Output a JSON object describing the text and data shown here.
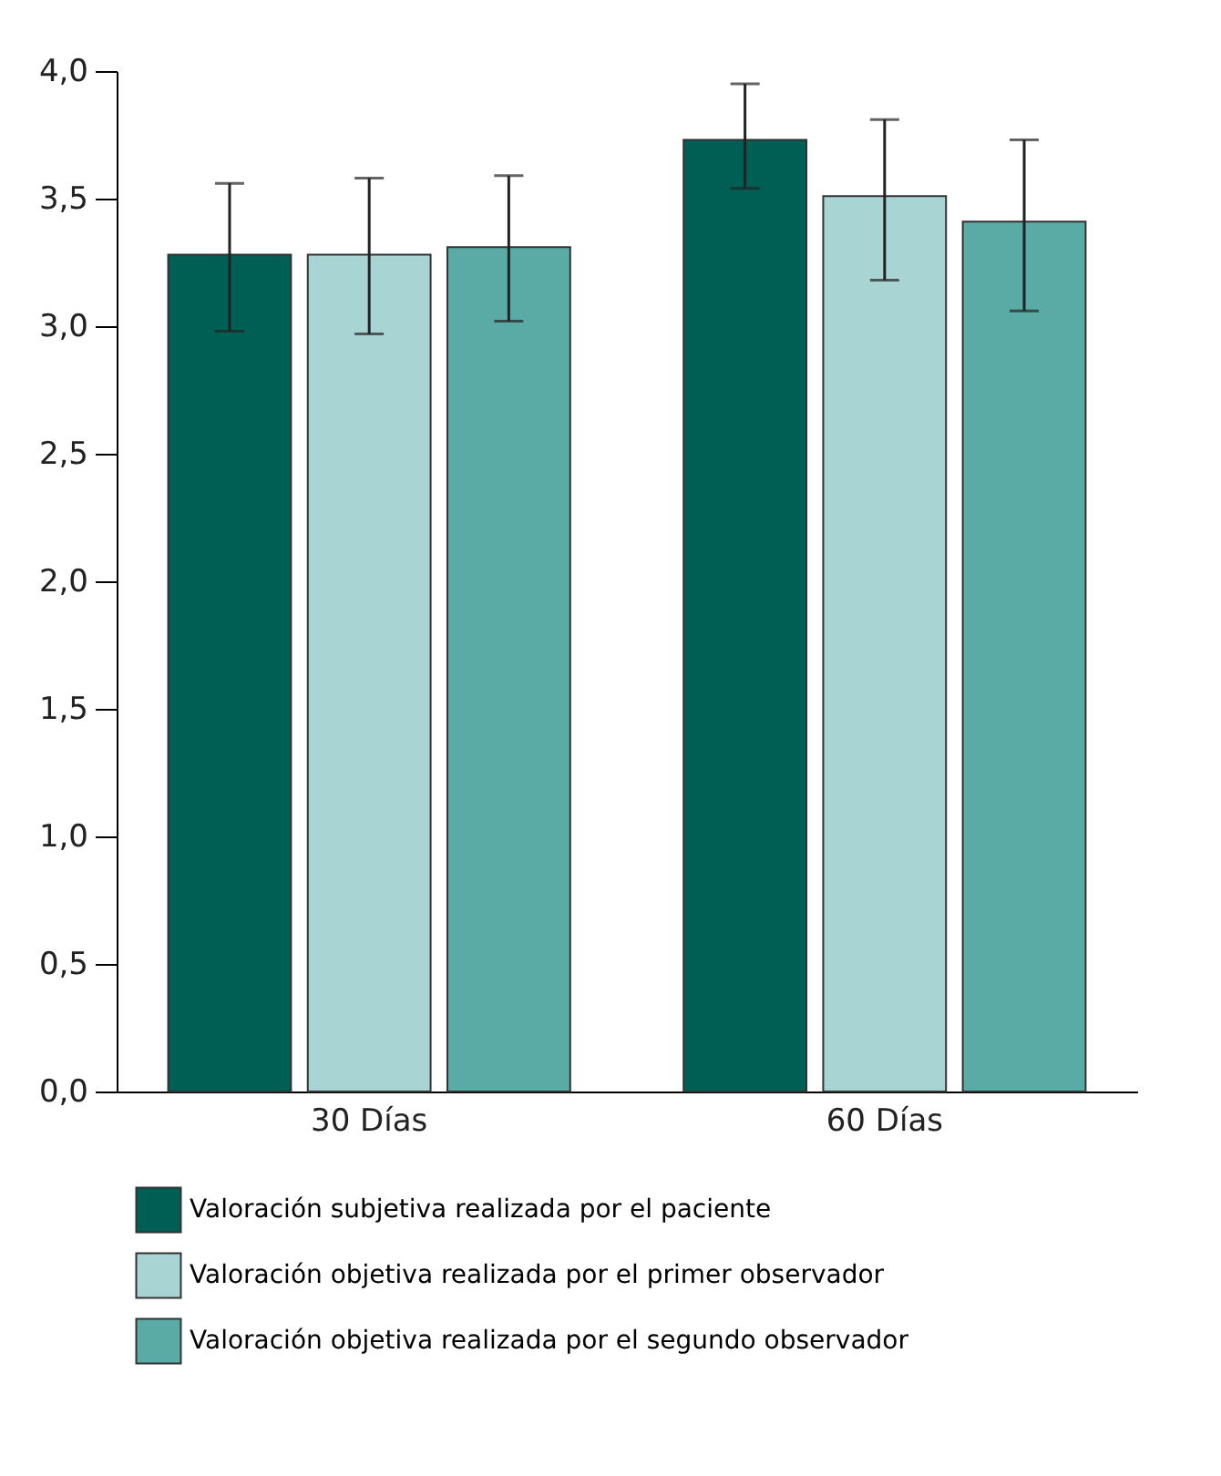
{
  "chart_data": {
    "type": "bar",
    "categories": [
      "30 Días",
      "60 Días"
    ],
    "series": [
      {
        "name": "Valoración subjetiva realizada por el paciente",
        "color": "#005f55",
        "values": [
          3.28,
          3.73
        ],
        "errors": [
          [
            2.98,
            3.56
          ],
          [
            3.54,
            3.95
          ]
        ]
      },
      {
        "name": "Valoración objetiva realizada por el primer observador",
        "color": "#a8d5d3",
        "values": [
          3.28,
          3.51
        ],
        "errors": [
          [
            2.97,
            3.58
          ],
          [
            3.18,
            3.81
          ]
        ]
      },
      {
        "name": "Valoración objetiva realizada por el segundo observador",
        "color": "#5aaba5",
        "values": [
          3.31,
          3.41
        ],
        "errors": [
          [
            3.02,
            3.59
          ],
          [
            3.06,
            3.73
          ]
        ]
      }
    ],
    "ylim": [
      0,
      4
    ],
    "yticks": [
      {
        "value": 0,
        "label": "0,0"
      },
      {
        "value": 0.5,
        "label": "0,5"
      },
      {
        "value": 1,
        "label": "1,0"
      },
      {
        "value": 1.5,
        "label": "1,5"
      },
      {
        "value": 2,
        "label": "2,0"
      },
      {
        "value": 2.5,
        "label": "2,5"
      },
      {
        "value": 3,
        "label": "3,0"
      },
      {
        "value": 3.5,
        "label": "3,5"
      },
      {
        "value": 4,
        "label": "4,0"
      }
    ],
    "grid": false,
    "legend": "bottom"
  }
}
